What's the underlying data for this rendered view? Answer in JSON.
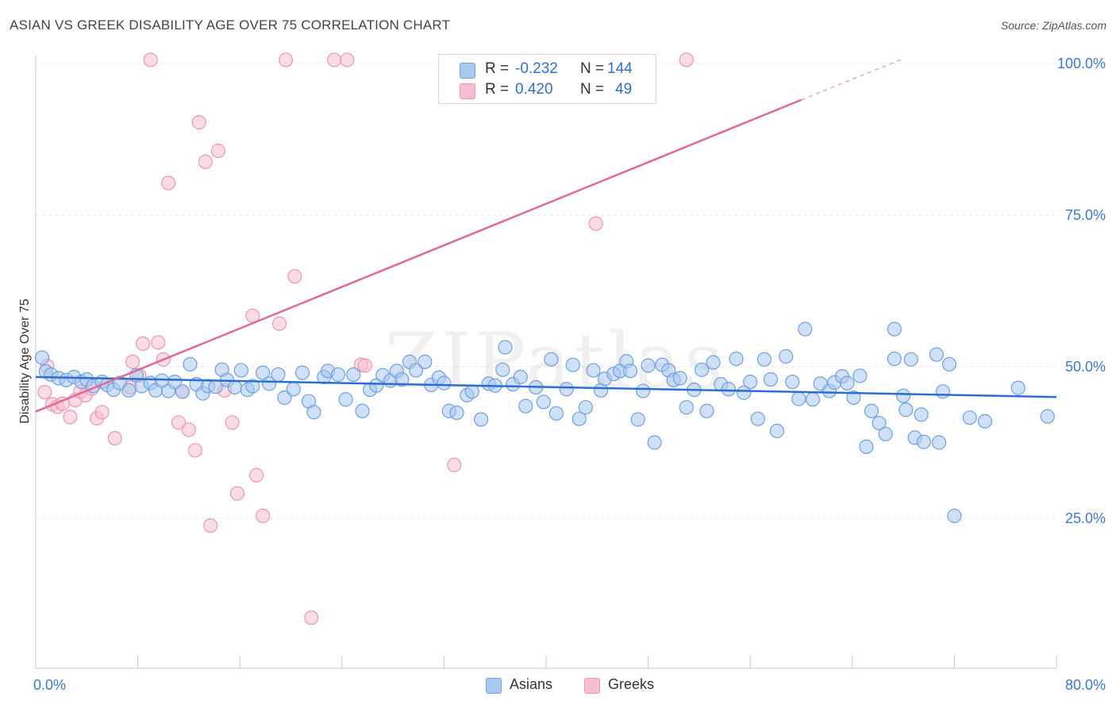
{
  "header": {
    "title": "ASIAN VS GREEK DISABILITY AGE OVER 75 CORRELATION CHART",
    "source": "Source: ZipAtlas.com"
  },
  "watermark": {
    "text": "ZIPatlas"
  },
  "legend_top": {
    "rows": [
      {
        "r_label": "R =",
        "r_value": "-0.232",
        "n_label": "N =",
        "n_value": "144"
      },
      {
        "r_label": "R =",
        "r_value": "0.420",
        "n_label": "N =",
        "n_value": "49"
      }
    ]
  },
  "legend_bottom": {
    "items": [
      {
        "label": "Asians"
      },
      {
        "label": "Greeks"
      }
    ]
  },
  "colors": {
    "asian_fill": "#a9c8f0",
    "asian_stroke": "#6fa0e0",
    "asian_line": "#2a6fd0",
    "greek_fill": "#f7bdd0",
    "greek_stroke": "#eb96b3",
    "greek_line": "#e06a95",
    "tick_label": "#3a78d0",
    "grid": "#e3e3e3"
  },
  "chart_data": {
    "type": "scatter",
    "title": "ASIAN VS GREEK DISABILITY AGE OVER 75 CORRELATION CHART",
    "xlabel": "",
    "ylabel": "Disability Age Over 75",
    "xlim": [
      0,
      80
    ],
    "ylim": [
      0,
      102
    ],
    "x_tick_labels": [
      {
        "value": 0,
        "label": "0.0%"
      },
      {
        "value": 80,
        "label": "80.0%"
      }
    ],
    "y_tick_labels": [
      {
        "value": 100,
        "label": "100.0%"
      },
      {
        "value": 75,
        "label": "75.0%"
      },
      {
        "value": 50,
        "label": "50.0%"
      },
      {
        "value": 25,
        "label": "25.0%"
      }
    ],
    "x_minor_ticks": [
      0,
      8,
      16,
      24,
      32,
      40,
      48,
      56,
      64,
      72,
      80
    ],
    "grid": true,
    "legend_position": "bottom-center",
    "series": [
      {
        "name": "Asians",
        "R": -0.232,
        "N": 144,
        "trend": {
          "x0": 0,
          "y0": 48.3,
          "x1": 80,
          "y1": 45.0
        },
        "points": [
          [
            0.5,
            51.5
          ],
          [
            0.8,
            49.2
          ],
          [
            1.2,
            48.7
          ],
          [
            1.8,
            48.1
          ],
          [
            2.4,
            47.8
          ],
          [
            3.0,
            48.3
          ],
          [
            3.6,
            47.5
          ],
          [
            4.0,
            47.9
          ],
          [
            4.5,
            46.8
          ],
          [
            5.2,
            47.5
          ],
          [
            5.6,
            47.0
          ],
          [
            6.1,
            46.2
          ],
          [
            6.6,
            47.3
          ],
          [
            7.3,
            46.1
          ],
          [
            7.9,
            48.6
          ],
          [
            8.3,
            46.8
          ],
          [
            9.0,
            47.3
          ],
          [
            9.4,
            46.1
          ],
          [
            9.9,
            47.7
          ],
          [
            10.4,
            46.0
          ],
          [
            10.9,
            47.5
          ],
          [
            11.5,
            45.9
          ],
          [
            12.1,
            50.4
          ],
          [
            12.6,
            47.1
          ],
          [
            13.1,
            45.6
          ],
          [
            13.5,
            46.8
          ],
          [
            14.1,
            46.7
          ],
          [
            14.6,
            49.5
          ],
          [
            15.0,
            47.8
          ],
          [
            15.6,
            46.6
          ],
          [
            16.1,
            49.4
          ],
          [
            16.6,
            46.2
          ],
          [
            17.0,
            46.8
          ],
          [
            17.8,
            49.0
          ],
          [
            18.3,
            47.2
          ],
          [
            19.0,
            48.7
          ],
          [
            19.5,
            44.9
          ],
          [
            20.2,
            46.3
          ],
          [
            20.9,
            49.0
          ],
          [
            21.4,
            44.3
          ],
          [
            21.8,
            42.5
          ],
          [
            22.6,
            48.3
          ],
          [
            22.9,
            49.3
          ],
          [
            23.7,
            48.7
          ],
          [
            24.3,
            44.6
          ],
          [
            24.9,
            48.7
          ],
          [
            25.6,
            42.7
          ],
          [
            26.2,
            46.2
          ],
          [
            26.7,
            46.9
          ],
          [
            27.2,
            48.6
          ],
          [
            27.8,
            47.7
          ],
          [
            28.3,
            49.3
          ],
          [
            28.7,
            47.9
          ],
          [
            29.3,
            50.8
          ],
          [
            29.8,
            49.4
          ],
          [
            30.5,
            50.8
          ],
          [
            31.0,
            47.0
          ],
          [
            31.6,
            48.2
          ],
          [
            32.0,
            47.3
          ],
          [
            32.4,
            42.7
          ],
          [
            33.0,
            42.4
          ],
          [
            33.8,
            45.3
          ],
          [
            34.2,
            45.9
          ],
          [
            34.9,
            41.3
          ],
          [
            35.5,
            47.2
          ],
          [
            36.0,
            46.9
          ],
          [
            36.8,
            53.2
          ],
          [
            36.6,
            49.5
          ],
          [
            37.4,
            47.1
          ],
          [
            38.0,
            48.3
          ],
          [
            38.4,
            43.5
          ],
          [
            39.2,
            46.6
          ],
          [
            39.8,
            44.2
          ],
          [
            40.4,
            51.2
          ],
          [
            40.8,
            42.3
          ],
          [
            41.6,
            46.3
          ],
          [
            42.1,
            50.3
          ],
          [
            42.6,
            41.4
          ],
          [
            43.1,
            43.3
          ],
          [
            43.7,
            49.4
          ],
          [
            44.3,
            46.1
          ],
          [
            44.6,
            48.0
          ],
          [
            45.3,
            48.8
          ],
          [
            45.8,
            49.3
          ],
          [
            46.3,
            50.9
          ],
          [
            46.6,
            49.3
          ],
          [
            47.2,
            41.3
          ],
          [
            47.6,
            46.0
          ],
          [
            48.0,
            50.2
          ],
          [
            48.5,
            37.5
          ],
          [
            49.1,
            50.3
          ],
          [
            49.6,
            49.4
          ],
          [
            50.0,
            47.8
          ],
          [
            50.5,
            48.1
          ],
          [
            51.0,
            43.3
          ],
          [
            51.6,
            46.2
          ],
          [
            52.2,
            49.5
          ],
          [
            52.6,
            42.7
          ],
          [
            53.1,
            50.7
          ],
          [
            53.7,
            47.1
          ],
          [
            54.3,
            46.3
          ],
          [
            54.9,
            51.3
          ],
          [
            55.5,
            45.7
          ],
          [
            56.0,
            47.5
          ],
          [
            56.6,
            41.4
          ],
          [
            57.1,
            51.2
          ],
          [
            57.6,
            47.9
          ],
          [
            58.1,
            39.4
          ],
          [
            58.8,
            51.7
          ],
          [
            59.3,
            47.5
          ],
          [
            59.8,
            44.7
          ],
          [
            60.3,
            56.2
          ],
          [
            60.9,
            44.6
          ],
          [
            61.5,
            47.2
          ],
          [
            62.2,
            46.0
          ],
          [
            62.6,
            47.4
          ],
          [
            63.2,
            48.4
          ],
          [
            63.6,
            47.3
          ],
          [
            64.1,
            44.9
          ],
          [
            64.6,
            48.5
          ],
          [
            65.1,
            36.8
          ],
          [
            65.5,
            42.7
          ],
          [
            66.1,
            40.7
          ],
          [
            66.6,
            38.9
          ],
          [
            67.3,
            51.3
          ],
          [
            68.0,
            45.2
          ],
          [
            68.2,
            42.9
          ],
          [
            68.6,
            51.2
          ],
          [
            68.9,
            38.3
          ],
          [
            67.3,
            56.2
          ],
          [
            69.6,
            37.6
          ],
          [
            69.4,
            42.1
          ],
          [
            70.6,
            52.0
          ],
          [
            70.8,
            37.5
          ],
          [
            71.1,
            45.9
          ],
          [
            71.6,
            50.4
          ],
          [
            72.0,
            25.4
          ],
          [
            73.2,
            41.6
          ],
          [
            74.4,
            41.0
          ],
          [
            77.0,
            46.5
          ],
          [
            79.3,
            41.8
          ]
        ]
      },
      {
        "name": "Greeks",
        "R": 0.42,
        "N": 49,
        "trend": {
          "x0": 0,
          "y0": 42.6,
          "x1": 60,
          "y1": 94.0,
          "dashed_to": {
            "x": 68,
            "y": 100.8
          }
        },
        "points": [
          [
            0.7,
            45.8
          ],
          [
            0.9,
            50.1
          ],
          [
            1.3,
            43.8
          ],
          [
            1.7,
            43.4
          ],
          [
            2.1,
            43.9
          ],
          [
            2.7,
            41.7
          ],
          [
            3.1,
            44.5
          ],
          [
            3.5,
            45.9
          ],
          [
            3.9,
            45.3
          ],
          [
            4.4,
            46.4
          ],
          [
            4.8,
            41.5
          ],
          [
            5.2,
            42.5
          ],
          [
            6.2,
            38.2
          ],
          [
            7.4,
            46.6
          ],
          [
            7.6,
            50.8
          ],
          [
            8.1,
            48.6
          ],
          [
            8.4,
            53.8
          ],
          [
            9.0,
            100.6
          ],
          [
            9.6,
            54.0
          ],
          [
            10.0,
            51.2
          ],
          [
            10.4,
            80.3
          ],
          [
            11.2,
            40.8
          ],
          [
            11.5,
            45.9
          ],
          [
            12.0,
            39.6
          ],
          [
            12.5,
            36.2
          ],
          [
            12.8,
            90.3
          ],
          [
            13.3,
            83.8
          ],
          [
            13.7,
            23.8
          ],
          [
            14.3,
            85.6
          ],
          [
            14.8,
            46.1
          ],
          [
            15.4,
            40.8
          ],
          [
            15.8,
            29.1
          ],
          [
            17.0,
            58.4
          ],
          [
            17.3,
            32.1
          ],
          [
            17.8,
            25.4
          ],
          [
            19.1,
            57.1
          ],
          [
            19.6,
            100.6
          ],
          [
            20.3,
            64.9
          ],
          [
            21.6,
            8.6
          ],
          [
            23.4,
            100.6
          ],
          [
            24.4,
            100.6
          ],
          [
            25.5,
            50.3
          ],
          [
            25.8,
            50.2
          ],
          [
            32.8,
            33.8
          ],
          [
            43.9,
            73.6
          ],
          [
            51.0,
            100.6
          ]
        ]
      }
    ]
  }
}
